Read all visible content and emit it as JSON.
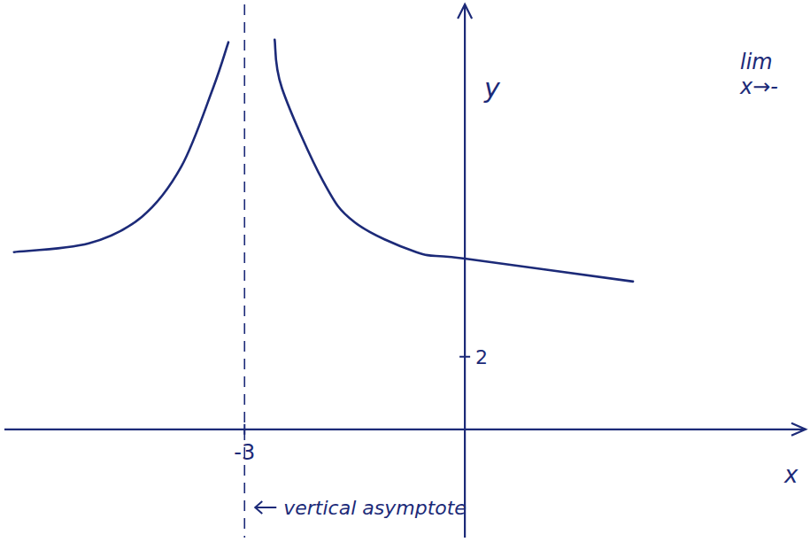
{
  "chart_data": {
    "type": "line",
    "x_label": "x",
    "y_label": "y",
    "x": [
      -6.14,
      -5.12,
      -4.4,
      -3.86,
      -3.43,
      -3.22,
      -3,
      -2.59,
      -2.49,
      -1.93,
      -1.5,
      -0.66,
      0,
      2.29
    ],
    "series": [
      {
        "color": "#1c2a78",
        "line_style": "solid",
        "marker": "none",
        "values": [
          4.88,
          5.12,
          5.85,
          7.24,
          9.39,
          10.66,
          null,
          10.73,
          9.39,
          6.83,
          5.7,
          4.88,
          4.7,
          4.07
        ]
      }
    ],
    "xlim": [
      -6.27,
      4.64
    ],
    "ylim": [
      -2.98,
      11.7
    ],
    "xticks": [
      -3
    ],
    "yticks": [
      2
    ],
    "grid": false,
    "tick_labels": true,
    "annotations": [
      {
        "text": "vertical asymptote",
        "x": -3
      },
      {
        "text": "lim"
      },
      {
        "text": "x→-"
      }
    ]
  }
}
